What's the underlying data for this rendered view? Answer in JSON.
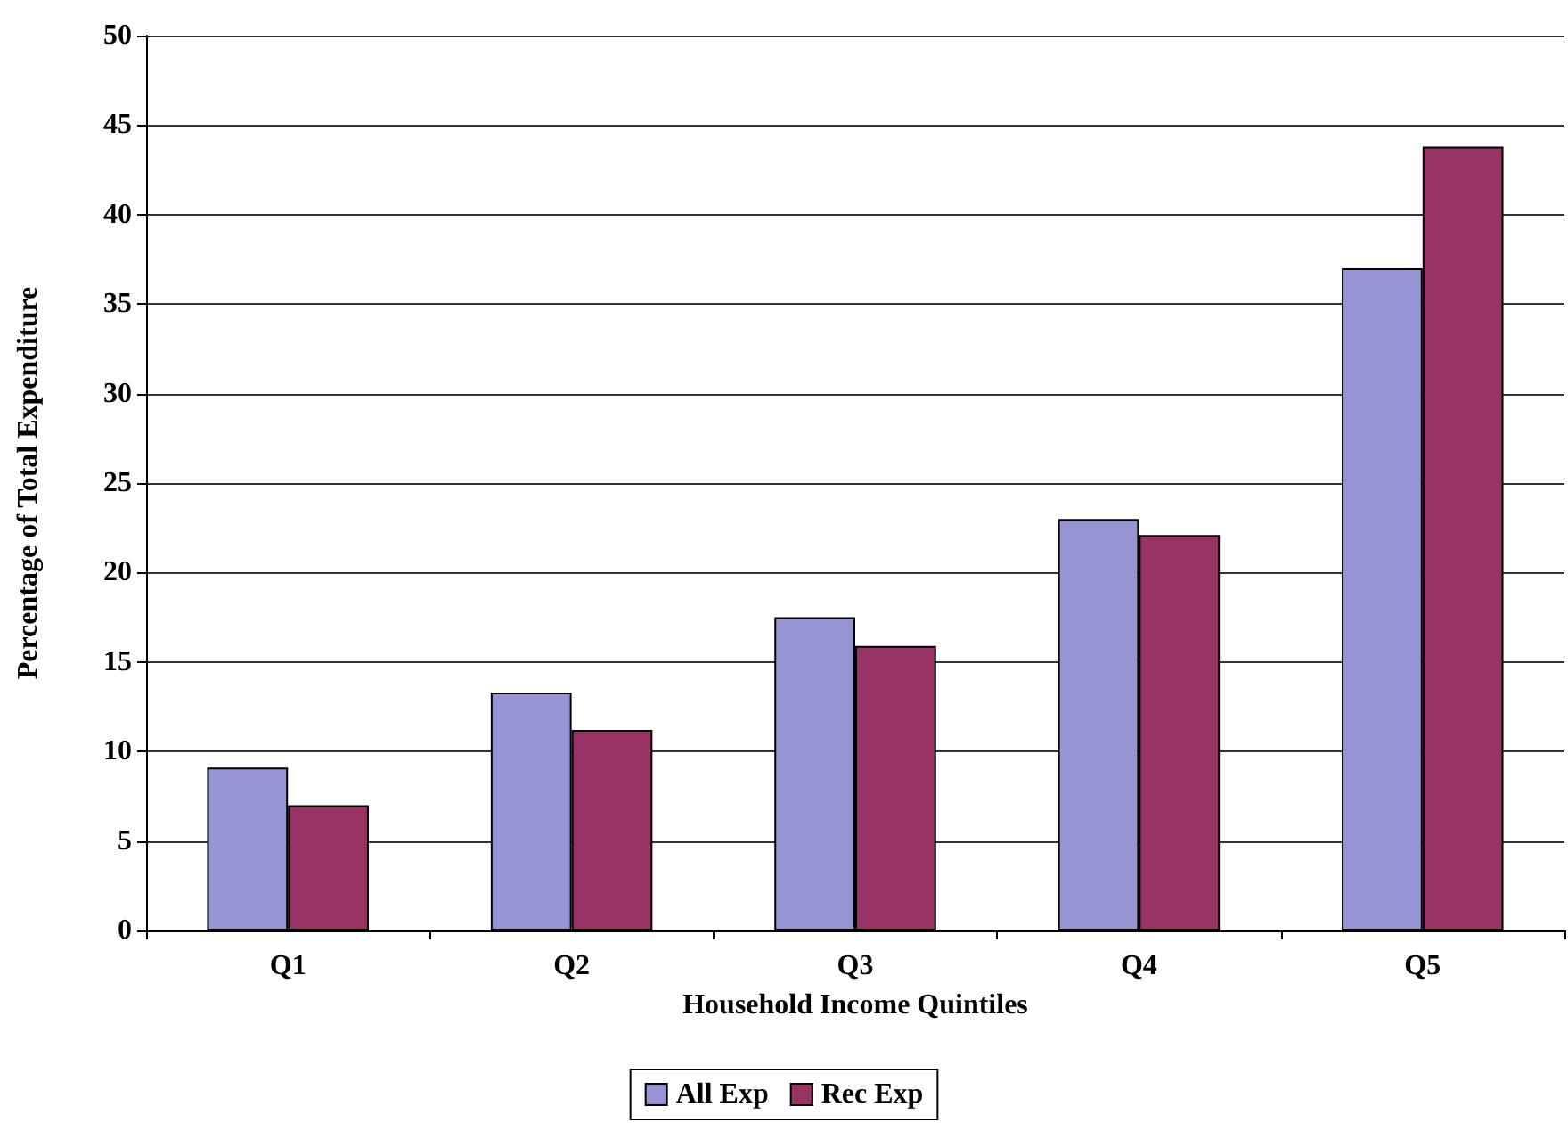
{
  "chart_data": {
    "type": "bar",
    "xlabel": "Household Income Quintiles",
    "ylabel": "Percentage of Total Expenditure",
    "categories": [
      "Q1",
      "Q2",
      "Q3",
      "Q4",
      "Q5"
    ],
    "series": [
      {
        "name": "All Exp",
        "color": "#9595d3",
        "values": [
          9.1,
          13.3,
          17.5,
          23.0,
          37.0
        ]
      },
      {
        "name": "Rec Exp",
        "color": "#993366",
        "values": [
          7.0,
          11.2,
          15.9,
          22.1,
          43.8
        ]
      }
    ],
    "ylim": [
      0,
      50
    ],
    "yticks": [
      0,
      5,
      10,
      15,
      20,
      25,
      30,
      35,
      40,
      45,
      50
    ],
    "grid": "y",
    "legend": "bottom"
  }
}
